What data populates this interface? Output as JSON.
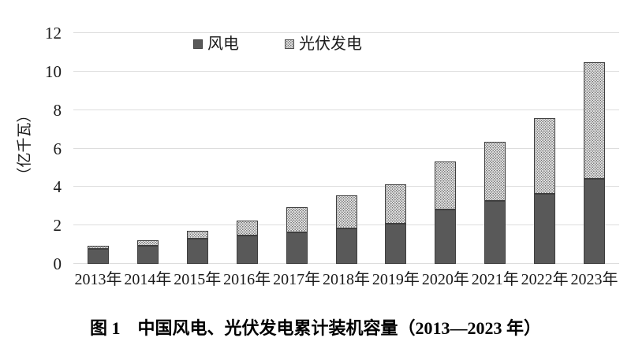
{
  "figure": {
    "caption": "图 1　中国风电、光伏发电累计装机容量（2013—2023 年）"
  },
  "chart_data": {
    "type": "bar",
    "stacked": true,
    "title": "",
    "categories": [
      "2013年",
      "2014年",
      "2015年",
      "2016年",
      "2017年",
      "2018年",
      "2019年",
      "2020年",
      "2021年",
      "2022年",
      "2023年"
    ],
    "series": [
      {
        "name": "风电",
        "fill": "solid",
        "color": "#595959",
        "values": [
          0.77,
          0.96,
          1.31,
          1.49,
          1.64,
          1.84,
          2.1,
          2.81,
          3.28,
          3.65,
          4.41
        ]
      },
      {
        "name": "光伏发电",
        "fill": "dotted",
        "color": "#6e6e6e",
        "values": [
          0.19,
          0.28,
          0.43,
          0.77,
          1.3,
          1.74,
          2.04,
          2.53,
          3.06,
          3.93,
          6.09
        ]
      }
    ],
    "totals": [
      0.96,
      1.24,
      1.74,
      2.26,
      2.94,
      3.58,
      4.14,
      5.34,
      6.34,
      7.58,
      10.5
    ],
    "xlabel": "",
    "ylabel": "（亿千瓦）",
    "ylim": [
      0,
      12
    ],
    "yticks": [
      "0",
      "2",
      "4",
      "6",
      "8",
      "10",
      "12"
    ],
    "grid": true,
    "gridline_color": "#dddddd",
    "legend_position": "top-center",
    "background_color": "#ffffff"
  }
}
